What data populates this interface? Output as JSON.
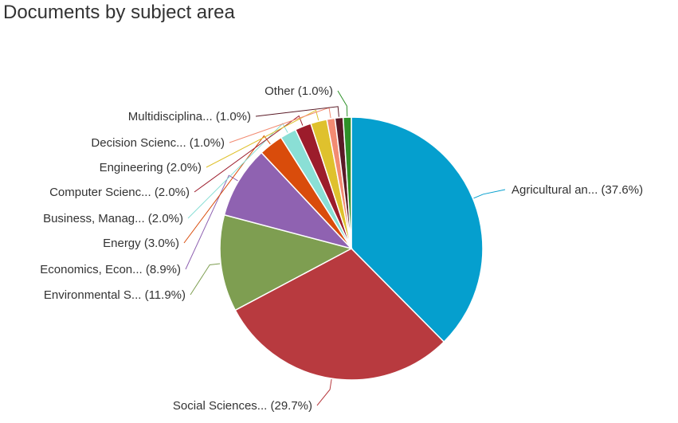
{
  "chart_data": {
    "type": "pie",
    "title": "Documents by subject area",
    "slices": [
      {
        "label": "Agricultural an...",
        "value": 37.6,
        "display": "Agricultural an... (37.6%)",
        "color": "#059fce"
      },
      {
        "label": "Social Sciences...",
        "value": 29.7,
        "display": "Social Sciences... (29.7%)",
        "color": "#b83a3f"
      },
      {
        "label": "Environmental S...",
        "value": 11.9,
        "display": "Environmental S... (11.9%)",
        "color": "#7e9e51"
      },
      {
        "label": "Economics, Econ...",
        "value": 8.9,
        "display": "Economics, Econ... (8.9%)",
        "color": "#8f62b1"
      },
      {
        "label": "Energy",
        "value": 3.0,
        "display": "Energy (3.0%)",
        "color": "#d94c0b"
      },
      {
        "label": "Business, Manag...",
        "value": 2.0,
        "display": "Business, Manag... (2.0%)",
        "color": "#8adfd5"
      },
      {
        "label": "Computer Scienc...",
        "value": 2.0,
        "display": "Computer Scienc... (2.0%)",
        "color": "#9c1c2b"
      },
      {
        "label": "Engineering",
        "value": 2.0,
        "display": "Engineering (2.0%)",
        "color": "#dfc12d"
      },
      {
        "label": "Decision Scienc...",
        "value": 1.0,
        "display": "Decision Scienc... (1.0%)",
        "color": "#f28b72"
      },
      {
        "label": "Multidisciplina...",
        "value": 1.0,
        "display": "Multidisciplina... (1.0%)",
        "color": "#5a1a26"
      },
      {
        "label": "Other",
        "value": 1.0,
        "display": "Other (1.0%)",
        "color": "#2d9128"
      }
    ]
  }
}
